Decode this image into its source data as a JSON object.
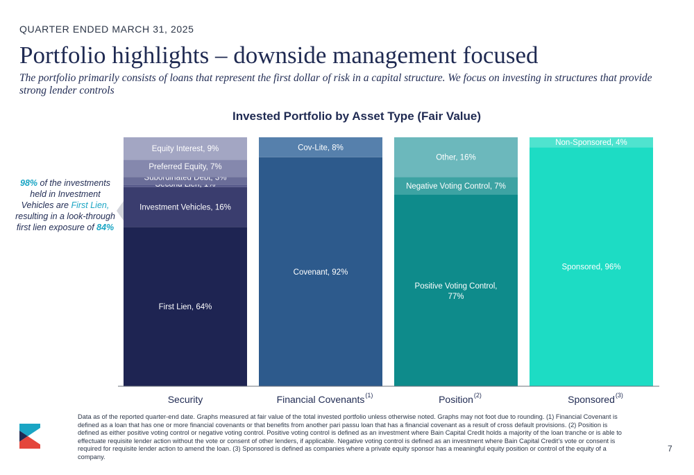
{
  "header": {
    "quarter": "QUARTER ENDED MARCH 31, 2025",
    "title": "Portfolio highlights – downside management focused",
    "subtitle": "The portfolio primarily consists of loans that represent the first dollar of risk in a capital structure. We focus on investing in structures that provide strong lender controls"
  },
  "callout": {
    "pct1": "98%",
    "text1": " of the investments held in Investment Vehicles are ",
    "hl": "First Lien,",
    "text2": " resulting in a look-through first lien exposure of ",
    "pct2": "84%"
  },
  "footnote": "Data as of the reported quarter-end date. Graphs measured at fair value of the total invested portfolio unless otherwise noted. Graphs may not foot due to rounding. (1) Financial Covenant is defined as a loan that has one or more financial covenants or that benefits from another pari passu loan that has a financial covenant as a result of cross default provisions. (2) Position is defined as either positive voting control or negative voting control. Positive voting control is defined as an investment where Bain Capital Credit holds a majority of the loan tranche or is able to effectuate requisite lender action without the vote or consent of other lenders, if applicable. Negative voting control is defined as an investment where Bain Capital Credit’s vote or consent is required for requisite lender action to amend the loan. (3) Sponsored is defined as companies where a private equity sponsor has a meaningful equity position or control of the equity of a company.",
  "page_number": "7",
  "chart_data": {
    "type": "bar",
    "stacked": true,
    "normalized": true,
    "title": "Invested Portfolio by Asset Type (Fair Value)",
    "ylim": [
      0,
      100
    ],
    "grid": false,
    "legend": "none",
    "columns": [
      {
        "category": "Security",
        "sup": "",
        "segments": [
          {
            "label": "First Lien, 64%",
            "value": 64,
            "color": "#1e2452"
          },
          {
            "label": "Investment Vehicles, 16%",
            "value": 16,
            "color": "#3a3d6e"
          },
          {
            "label": "Second Lien, 1%",
            "value": 1,
            "color": "#56598a"
          },
          {
            "label": "Subordinated Debt, 3%",
            "value": 3,
            "color": "#6a6d98"
          },
          {
            "label": "Preferred Equity, 7%",
            "value": 7,
            "color": "#8588ad"
          },
          {
            "label": "Equity Interest, 9%",
            "value": 9,
            "color": "#a3a6c3"
          }
        ]
      },
      {
        "category": "Financial Covenants",
        "sup": "(1)",
        "segments": [
          {
            "label": "Covenant, 92%",
            "value": 92,
            "color": "#2d5a8c"
          },
          {
            "label": "Cov-Lite, 8%",
            "value": 8,
            "color": "#5680ac"
          }
        ]
      },
      {
        "category": "Position",
        "sup": "(2)",
        "segments": [
          {
            "label": "Positive Voting Control, 77%",
            "value": 77,
            "color": "#0e8b8b"
          },
          {
            "label": "Negative Voting Control, 7%",
            "value": 7,
            "color": "#3da3a3"
          },
          {
            "label": "Other, 16%",
            "value": 16,
            "color": "#6cb8bc"
          }
        ]
      },
      {
        "category": "Sponsored",
        "sup": "(3)",
        "segments": [
          {
            "label": "Sponsored, 96%",
            "value": 96,
            "color": "#1ddcc4"
          },
          {
            "label": "Non-Sponsored, 4%",
            "value": 4,
            "color": "#4fe3cf"
          }
        ]
      }
    ]
  }
}
